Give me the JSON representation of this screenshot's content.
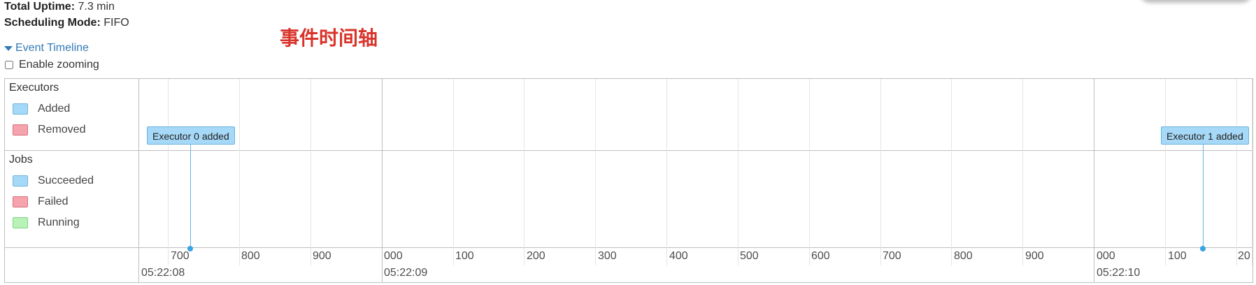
{
  "summary": {
    "uptime_label": "Total Uptime:",
    "uptime_value": "7.3 min",
    "scheduling_label": "Scheduling Mode:",
    "scheduling_value": "FIFO"
  },
  "annotation": "事件时间轴",
  "timeline": {
    "toggle_label": "Event Timeline",
    "zoom_label": "Enable zooming",
    "zoom_enabled": false,
    "executors": {
      "title": "Executors",
      "legend": [
        {
          "label": "Added",
          "color": "#a6d8f7",
          "border": "#6bb4e0"
        },
        {
          "label": "Removed",
          "color": "#f5a3ad",
          "border": "#d9717d"
        }
      ]
    },
    "jobs": {
      "title": "Jobs",
      "legend": [
        {
          "label": "Succeeded",
          "color": "#a6d8f7",
          "border": "#6bb4e0"
        },
        {
          "label": "Failed",
          "color": "#f5a3ad",
          "border": "#d9717d"
        },
        {
          "label": "Running",
          "color": "#b8f2b8",
          "border": "#7fd47f"
        }
      ]
    },
    "events": [
      {
        "label": "Executor 0 added"
      },
      {
        "label": "Executor 1 added"
      }
    ],
    "minor_ticks": [
      "700",
      "800",
      "900",
      "000",
      "100",
      "200",
      "300",
      "400",
      "500",
      "600",
      "700",
      "800",
      "900",
      "000",
      "100",
      "20"
    ],
    "major_ticks": [
      "05:22:08",
      "05:22:09",
      "05:22:10"
    ]
  }
}
